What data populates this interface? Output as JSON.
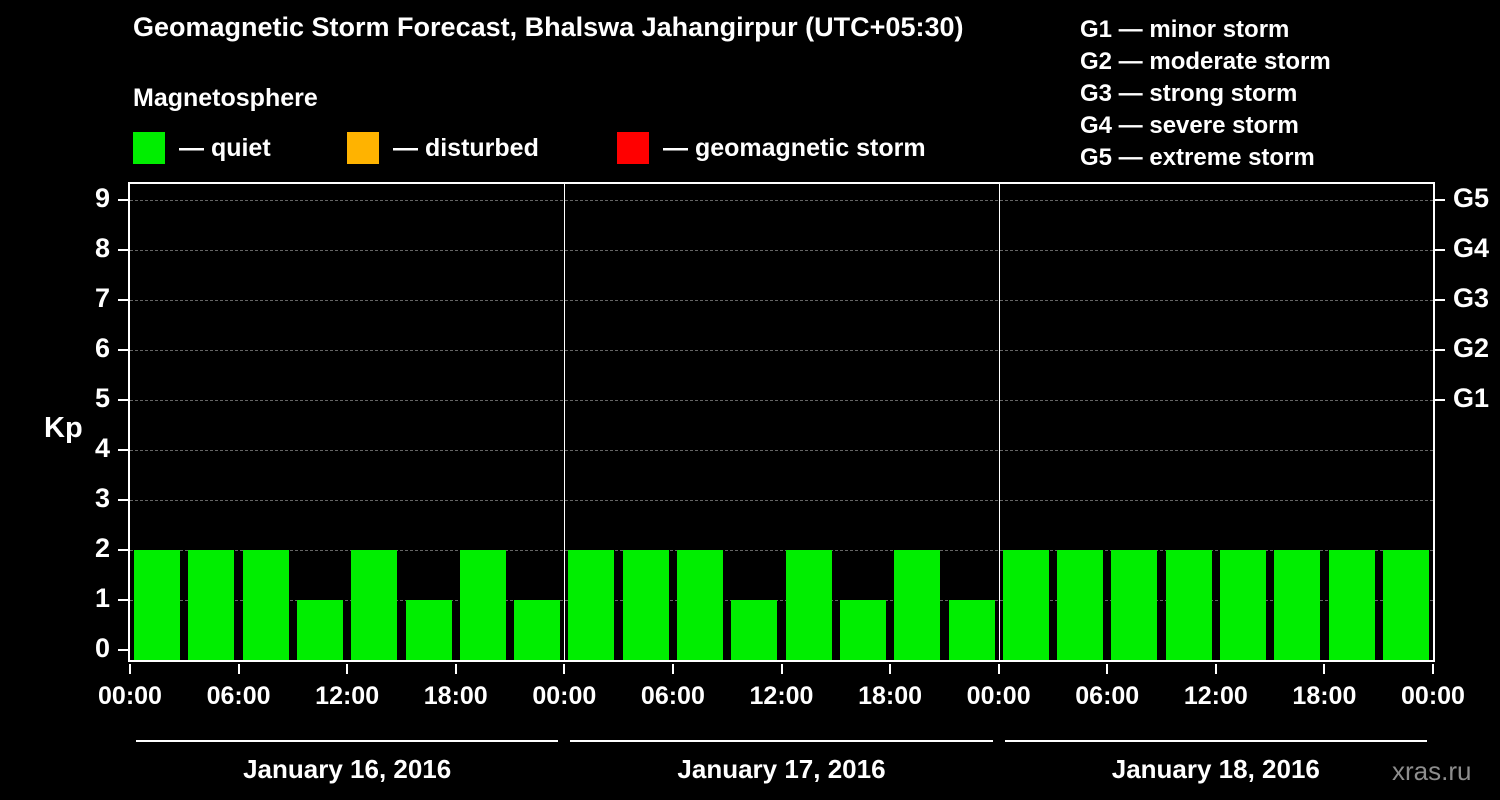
{
  "header": {
    "title": "Geomagnetic Storm Forecast, Bhalswa Jahangirpur (UTC+05:30)",
    "subtitle": "Magnetosphere"
  },
  "legend": {
    "items": [
      {
        "name": "quiet",
        "label": "— quiet",
        "color": "#00ee00"
      },
      {
        "name": "disturbed",
        "label": "— disturbed",
        "color": "#ffb300"
      },
      {
        "name": "storm",
        "label": "— geomagnetic storm",
        "color": "#ff0000"
      }
    ]
  },
  "g_scale_legend": [
    "G1 — minor storm",
    "G2 — moderate storm",
    "G3 — strong storm",
    "G4 — severe storm",
    "G5 — extreme storm"
  ],
  "watermark": "xras.ru",
  "chart_data": {
    "type": "bar",
    "title": "Geomagnetic Storm Forecast, Bhalswa Jahangirpur (UTC+05:30)",
    "subtitle": "Magnetosphere",
    "ylabel": "Kp",
    "ylim": [
      0,
      9
    ],
    "bar_color": "#00ee00",
    "grid": "horizontal-dashed",
    "interval_hours": 3,
    "y_ticks": [
      0,
      1,
      2,
      3,
      4,
      5,
      6,
      7,
      8,
      9
    ],
    "right_labels": [
      {
        "kp": 5,
        "label": "G1"
      },
      {
        "kp": 6,
        "label": "G2"
      },
      {
        "kp": 7,
        "label": "G3"
      },
      {
        "kp": 8,
        "label": "G4"
      },
      {
        "kp": 9,
        "label": "G5"
      }
    ],
    "x_tick_labels": [
      "00:00",
      "06:00",
      "12:00",
      "18:00",
      "00:00",
      "06:00",
      "12:00",
      "18:00",
      "00:00",
      "06:00",
      "12:00",
      "18:00",
      "00:00"
    ],
    "days": [
      {
        "label": "January 16, 2016",
        "values": [
          2,
          2,
          2,
          1,
          2,
          1,
          2,
          1
        ]
      },
      {
        "label": "January 17, 2016",
        "values": [
          2,
          2,
          2,
          1,
          2,
          1,
          2,
          1
        ]
      },
      {
        "label": "January 18, 2016",
        "values": [
          2,
          2,
          2,
          2,
          2,
          2,
          2,
          2
        ]
      }
    ]
  }
}
